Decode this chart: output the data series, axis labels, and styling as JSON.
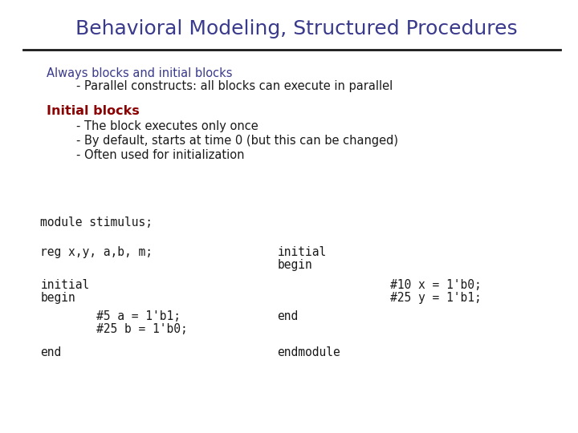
{
  "title": "Behavioral Modeling, Structured Procedures",
  "title_color": "#3a3a8c",
  "title_fontsize": 18,
  "bg_color": "#ffffff",
  "line_color": "#1a1a1a",
  "subtitle_line1": "Always blocks and initial blocks",
  "subtitle_line1_color": "#3a3a8c",
  "subtitle_line2": "        - Parallel constructs: all blocks can execute in parallel",
  "subtitle_color": "#1a1a1a",
  "section_title": "Initial blocks",
  "section_title_color": "#8b0000",
  "section_bullets": [
    "        - The block executes only once",
    "        - By default, starts at time 0 (but this can be changed)",
    "        - Often used for initialization"
  ],
  "code_lines_left": [
    [
      "module stimulus;",
      0.5
    ],
    [
      "reg x,y, a,b, m;",
      0.432
    ],
    [
      "initial",
      0.356
    ],
    [
      "begin",
      0.326
    ],
    [
      "        #5 a = 1'b1;",
      0.284
    ],
    [
      "        #25 b = 1'b0;",
      0.254
    ],
    [
      "end",
      0.2
    ]
  ],
  "code_lines_right": [
    [
      "initial",
      0.432
    ],
    [
      "begin",
      0.402
    ],
    [
      "                #10 x = 1'b0;",
      0.356
    ],
    [
      "                #25 y = 1'b1;",
      0.326
    ],
    [
      "end",
      0.284
    ],
    [
      "endmodule",
      0.2
    ]
  ],
  "code_color": "#1a1a1a",
  "code_fontsize": 10.5,
  "mono_font": "monospace",
  "sans_font": "DejaVu Sans"
}
